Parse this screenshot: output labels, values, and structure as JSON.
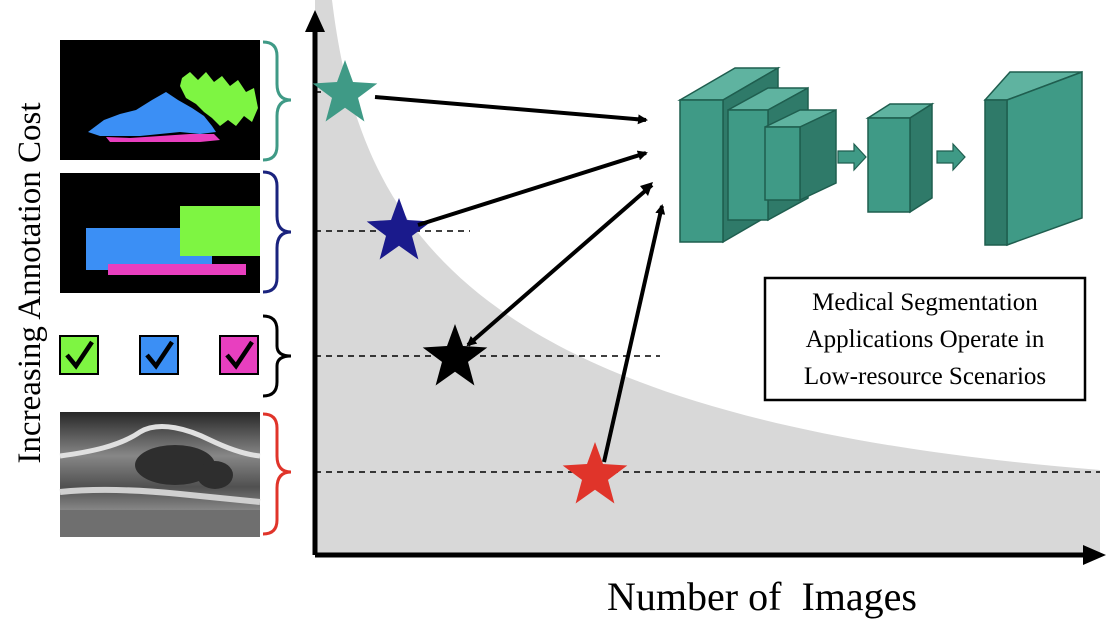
{
  "y_axis_label": "Increasing Annotation Cost",
  "x_axis_label": "Number of  Images",
  "note": {
    "lines": [
      "Medical Segmentation",
      "Applications Operate in",
      "Low-resource Scenarios"
    ]
  },
  "annotation_levels": [
    {
      "kind": "pixel-level segmentation masks",
      "star_color": "#3f9a86",
      "bracket_color": "#3f9a86"
    },
    {
      "kind": "bounding boxes",
      "star_color": "#1a1a8c",
      "bracket_color": "#1a237e"
    },
    {
      "kind": "image-level labels",
      "star_color": "#000000",
      "bracket_color": "#000000"
    },
    {
      "kind": "unlabeled images",
      "star_color": "#e0342a",
      "bracket_color": "#e0342a"
    }
  ],
  "colors": {
    "network": "#3f9a86",
    "network_dark": "#1f5e4f",
    "curve_fill": "#d8d8d8",
    "mask_green": "#7ef542",
    "mask_blue": "#3b8ff5",
    "mask_magenta": "#e83fbf"
  },
  "icons": [
    "check-green",
    "check-blue",
    "check-magenta",
    "star",
    "arrow"
  ]
}
